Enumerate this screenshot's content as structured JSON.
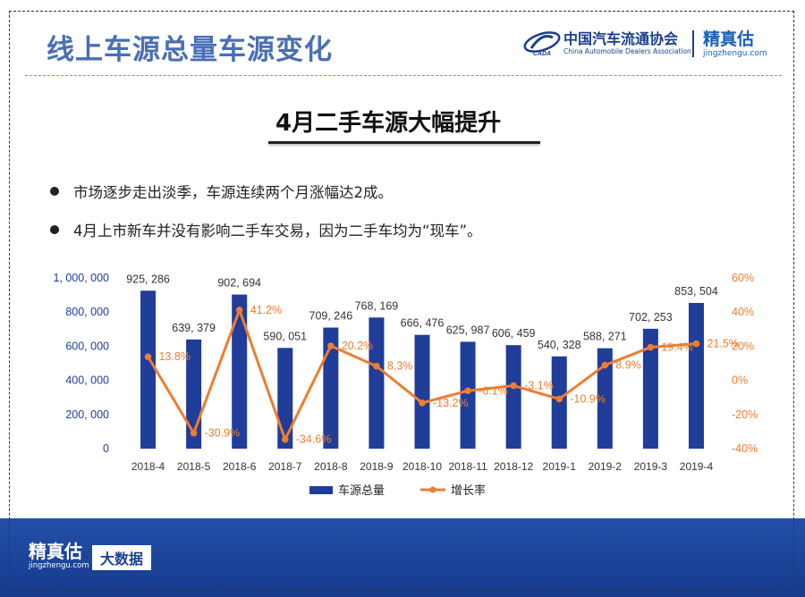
{
  "header": {
    "title": "线上车源总量车源变化",
    "cada_cn": "中国汽车流通协会",
    "cada_en": "China Automobile Dealers Association",
    "cada_mark": "CADA",
    "jzg_cn": "精真估",
    "jzg_en": "jingzhengu.com"
  },
  "subtitle": "4月二手车源大幅提升",
  "bullets": [
    "市场逐步走出淡季，车源连续两个月涨幅达2成。",
    "4月上市新车并没有影响二手车交易，因为二手车均为“现车”。"
  ],
  "footer": {
    "logo_cn": "精真估",
    "logo_en": "jingzhengu.com",
    "badge": "大数据"
  },
  "colors": {
    "bar": "#1f3d99",
    "line": "#ed7d31",
    "left_axis": "#1f3d99",
    "right_axis": "#ed7d31"
  },
  "chart_data": {
    "type": "bar",
    "categories": [
      "2018-4",
      "2018-5",
      "2018-6",
      "2018-7",
      "2018-8",
      "2018-9",
      "2018-10",
      "2018-11",
      "2018-12",
      "2019-1",
      "2019-2",
      "2019-3",
      "2019-4"
    ],
    "series": [
      {
        "name": "车源总量",
        "type": "bar",
        "axis": "left",
        "values": [
          925286,
          639379,
          902694,
          590051,
          709246,
          768169,
          666476,
          625987,
          606459,
          540328,
          588271,
          702253,
          853504
        ],
        "labels": [
          "925, 286",
          "639, 379",
          "902, 694",
          "590, 051",
          "709, 246",
          "768, 169",
          "666, 476",
          "625, 987",
          "606, 459",
          "540, 328",
          "588, 271",
          "702, 253",
          "853, 504"
        ]
      },
      {
        "name": "增长率",
        "type": "line",
        "axis": "right",
        "values": [
          13.8,
          -30.9,
          41.2,
          -34.6,
          20.2,
          8.3,
          -13.2,
          -6.1,
          -3.1,
          -10.9,
          8.9,
          19.4,
          21.5
        ],
        "labels": [
          "13.8%",
          "-30.9%",
          "41.2%",
          "-34.6%",
          "20.2%",
          "8.3%",
          "-13.2%",
          "-6.1%",
          "-3.1%",
          "-10.9%",
          "8.9%",
          "19.4%",
          "21.5%"
        ]
      }
    ],
    "y_left": {
      "range": [
        0,
        1000000
      ],
      "ticks": [
        0,
        200000,
        400000,
        600000,
        800000,
        1000000
      ],
      "tick_labels": [
        "0",
        "200, 000",
        "400, 000",
        "600, 000",
        "800, 000",
        "1, 000, 000"
      ]
    },
    "y_right": {
      "range": [
        -40,
        60
      ],
      "ticks": [
        -40,
        -20,
        0,
        20,
        40,
        60
      ],
      "tick_labels": [
        "-40%",
        "-20%",
        "0%",
        "20%",
        "40%",
        "60%"
      ]
    },
    "legend": {
      "position": "bottom"
    },
    "grid": false
  }
}
